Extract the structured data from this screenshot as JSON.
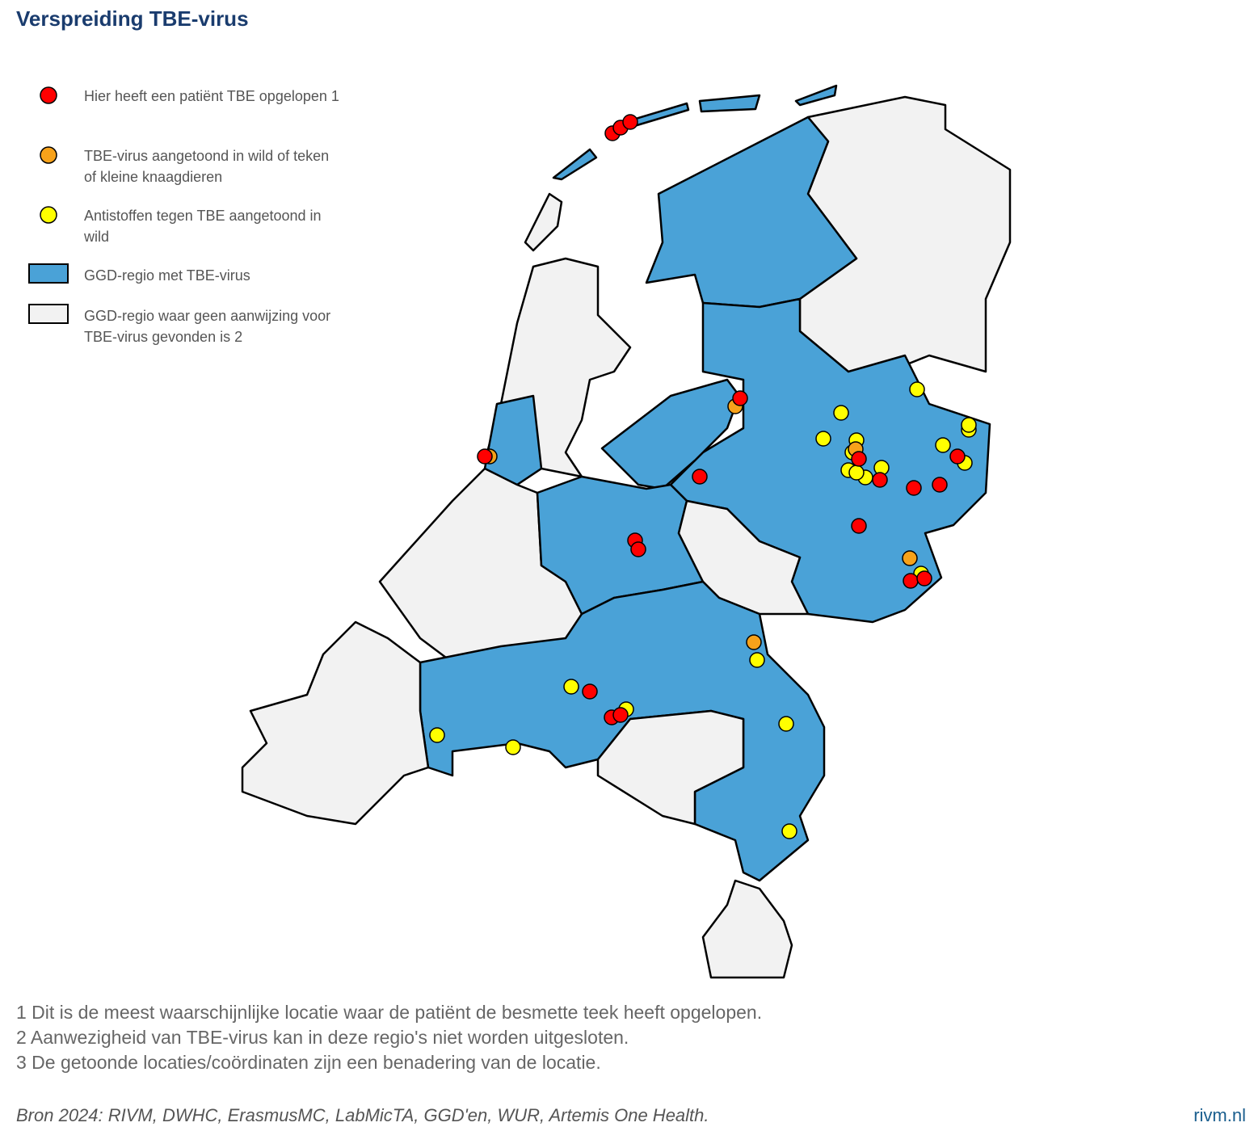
{
  "header": {
    "title": "Verspreiding TBE-virus"
  },
  "legend": {
    "items": [
      {
        "label": "Hier heeft een patiënt TBE opgelopen 1"
      },
      {
        "label": "TBE-virus aangetoond in wild of teken of kleine knaagdieren"
      },
      {
        "label": "Antistoffen tegen TBE aangetoond in wild"
      },
      {
        "label": "GGD-regio met TBE-virus"
      },
      {
        "label": "GGD-regio waar geen aanwijzing voor TBE-virus gevonden is 2"
      }
    ]
  },
  "footnotes": [
    "1 Dit is de meest waarschijnlijke locatie waar de patiënt de besmette teek heeft opgelopen.",
    "2 Aanwezigheid van TBE-virus kan in deze regio's niet worden uitgesloten.",
    "3 De getoonde locaties/coördinaten zijn een benadering van de locatie."
  ],
  "footer": {
    "source": "Bron 2024: RIVM, DWHC, ErasmusMC, LabMicTA, GGD'en, WUR, Artemis One Health.",
    "brand": "rivm.nl"
  }
}
